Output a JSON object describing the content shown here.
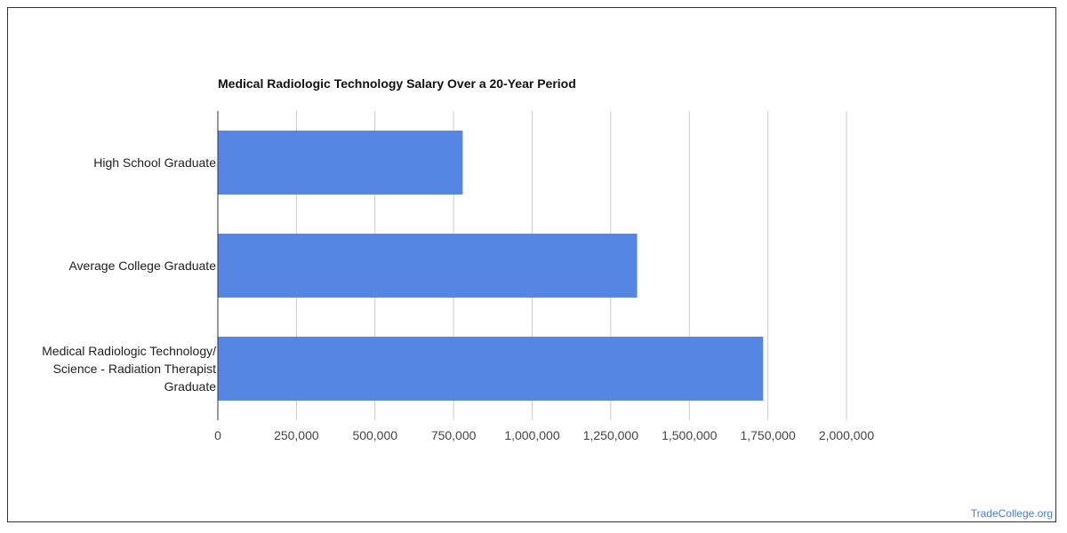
{
  "chart_data": {
    "type": "bar",
    "orientation": "horizontal",
    "title": "Medical Radiologic Technology Salary Over a 20-Year Period",
    "categories": [
      "High School Graduate",
      "Average College Graduate",
      "Medical Radiologic Technology/ Science - Radiation Therapist Graduate"
    ],
    "category_lines": [
      [
        "High School Graduate"
      ],
      [
        "Average College Graduate"
      ],
      [
        "Medical Radiologic Technology/",
        "Science - Radiation Therapist",
        "Graduate"
      ]
    ],
    "values": [
      779000,
      1334000,
      1735000
    ],
    "xlim": [
      0,
      2000000
    ],
    "xticks": [
      0,
      250000,
      500000,
      750000,
      1000000,
      1250000,
      1500000,
      1750000,
      2000000
    ],
    "xtick_labels": [
      "0",
      "250,000",
      "500,000",
      "750,000",
      "1,000,000",
      "1,250,000",
      "1,500,000",
      "1,750,000",
      "2,000,000"
    ],
    "xlabel": "",
    "ylabel": "",
    "grid": true,
    "legend": "none",
    "bar_color": "#5586e4"
  },
  "watermark": "TradeCollege.org"
}
